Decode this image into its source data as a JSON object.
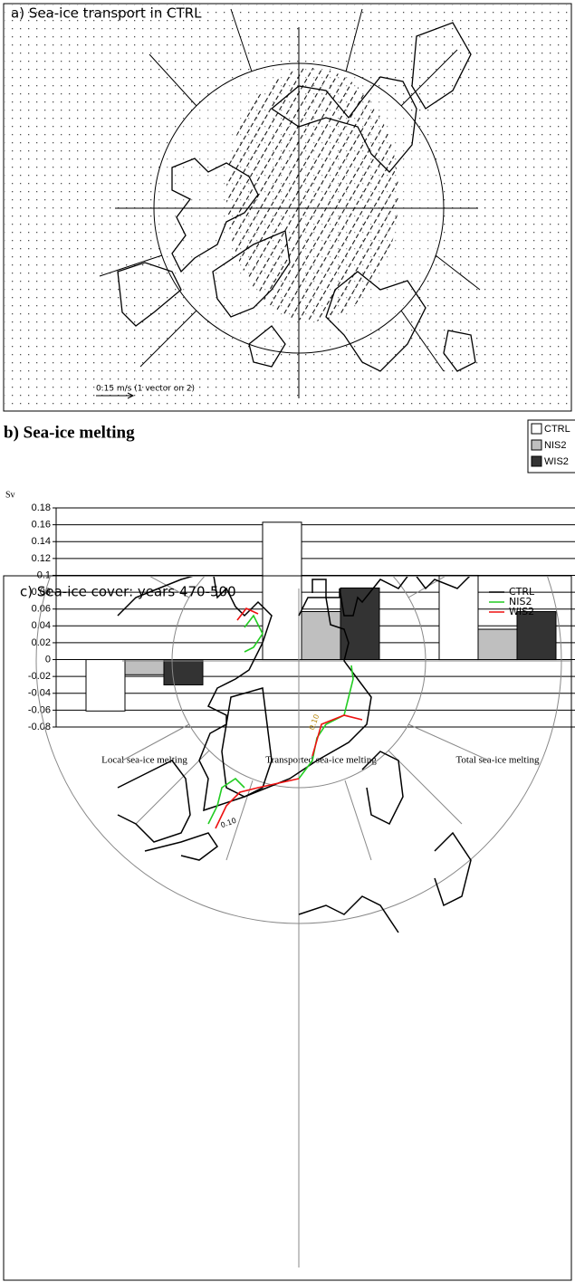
{
  "panel_a": {
    "title": "a) Sea-ice transport in CTRL",
    "scale_label": "0.15 m/s (1 vector on 2)"
  },
  "chart_data": {
    "type": "bar",
    "title": "b) Sea-ice melting",
    "y_label": "Sv",
    "categories": [
      "Local sea-ice melting",
      "Transported sea-ice melting",
      "Total sea-ice melting"
    ],
    "series": [
      {
        "name": "CTRL",
        "color": "#ffffff",
        "values": [
          -0.061,
          0.163,
          0.1
        ]
      },
      {
        "name": "NIS2",
        "color": "#bfbfbf",
        "values": [
          -0.018,
          0.057,
          0.036
        ]
      },
      {
        "name": "WIS2",
        "color": "#333333",
        "values": [
          -0.03,
          0.085,
          0.057
        ]
      }
    ],
    "ylim": [
      -0.08,
      0.18
    ],
    "yticks": [
      -0.08,
      -0.06,
      -0.04,
      -0.02,
      0,
      0.02,
      0.04,
      0.06,
      0.08,
      0.1,
      0.12,
      0.14,
      0.16,
      0.18
    ],
    "grid": true,
    "legend": "top-right"
  },
  "panel_c": {
    "title": "c) Sea-ice cover: years 470-500",
    "legend": [
      {
        "name": "CTRL",
        "color": "#000000"
      },
      {
        "name": "NIS2",
        "color": "#22cc22"
      },
      {
        "name": "WIS2",
        "color": "#ee1111"
      }
    ],
    "contour_labels": [
      "0.10",
      "0.10"
    ]
  }
}
